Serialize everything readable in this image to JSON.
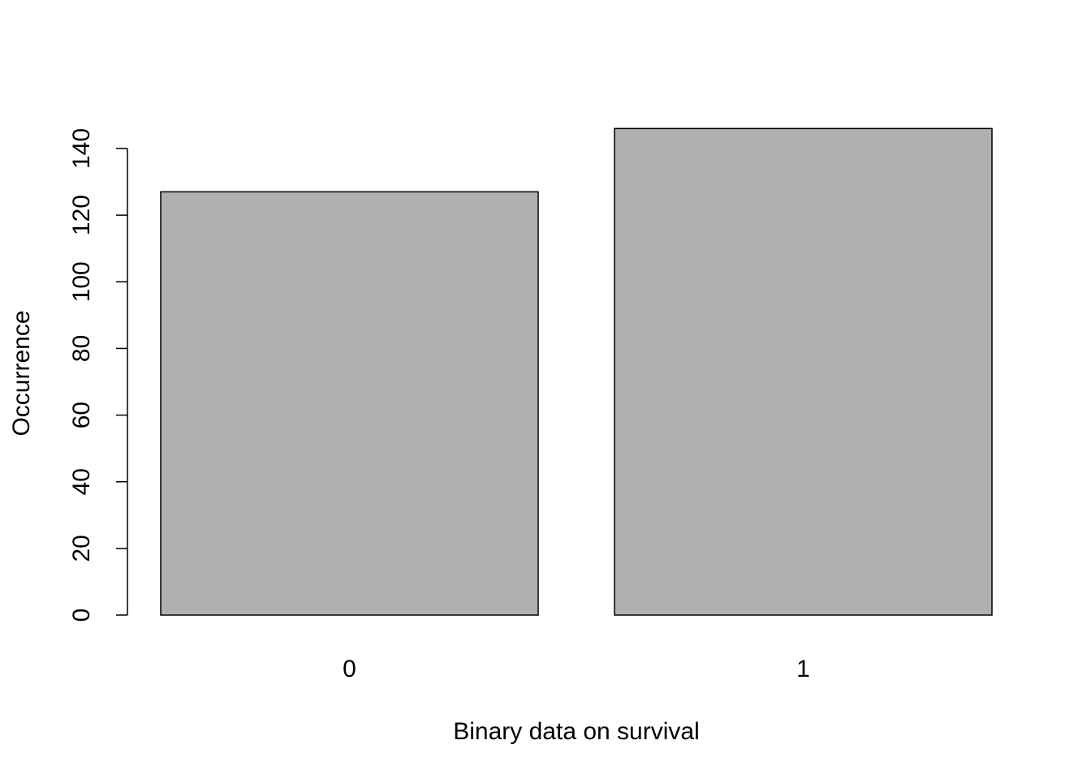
{
  "chart_data": {
    "type": "bar",
    "categories": [
      "0",
      "1"
    ],
    "values": [
      127,
      146
    ],
    "title": "",
    "xlabel": "Binary data on survival",
    "ylabel": "Occurrence",
    "ylim": [
      0,
      140
    ],
    "yticks": [
      0,
      20,
      40,
      60,
      80,
      100,
      120,
      140
    ],
    "grid": false,
    "bar_color": "#b0b0b0",
    "edge_color": "#000000"
  }
}
